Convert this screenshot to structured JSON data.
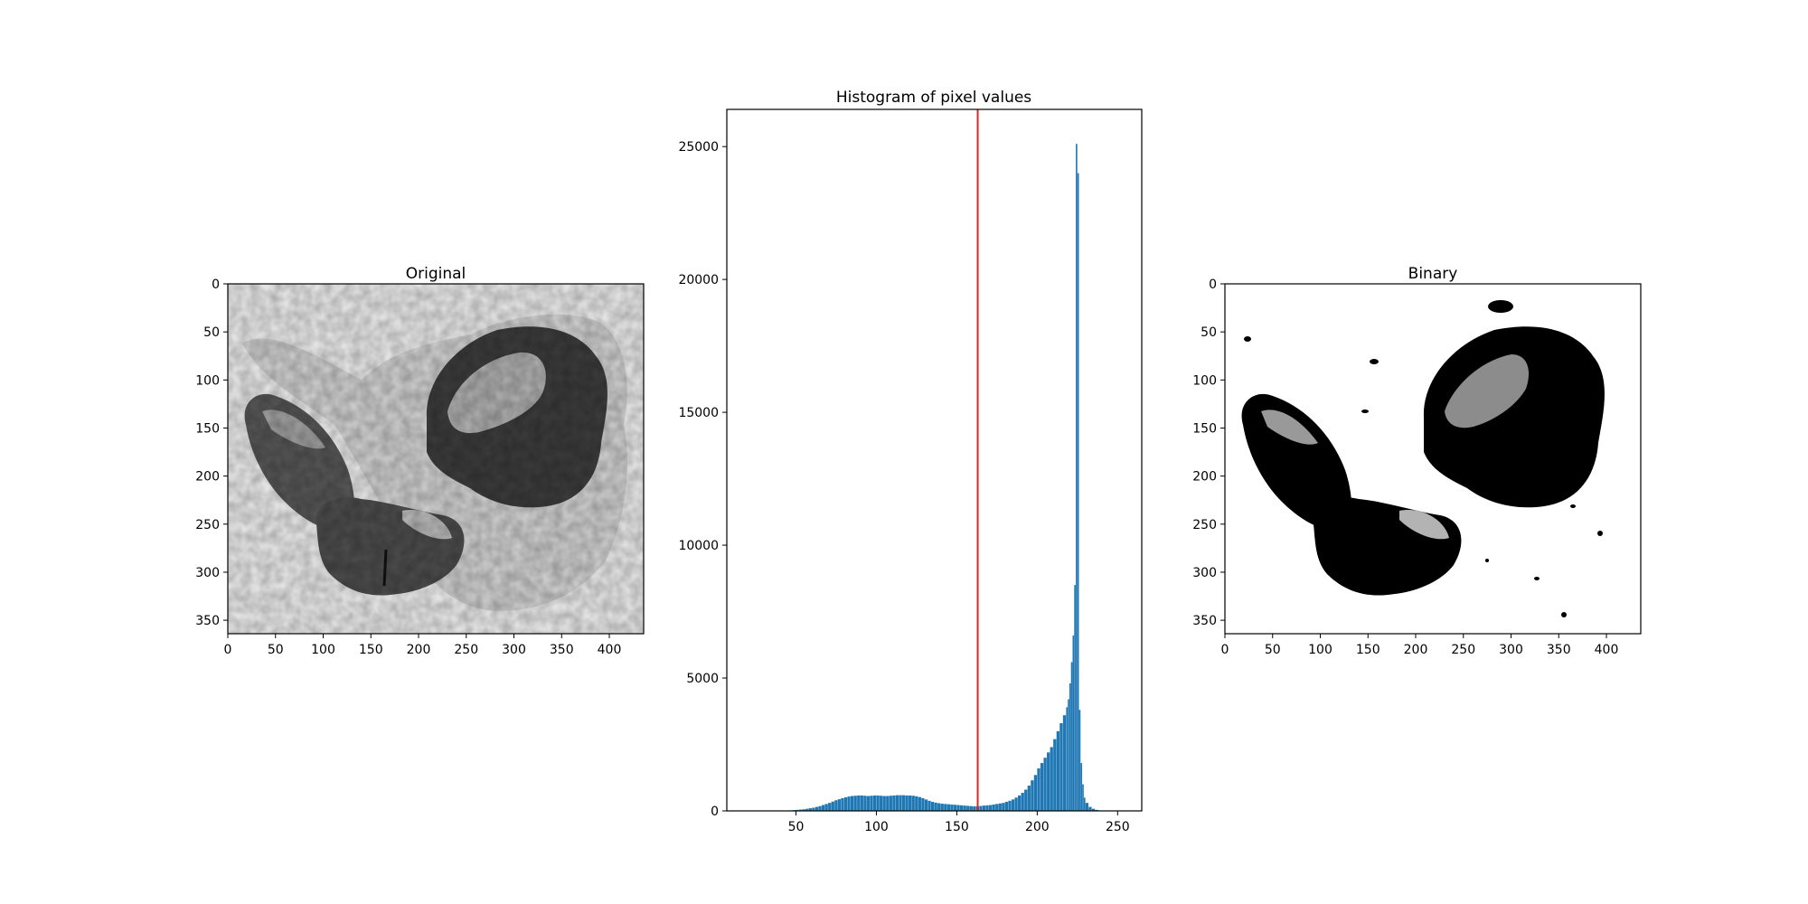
{
  "chart_data": [
    {
      "type": "image",
      "title": "Original",
      "xlim": [
        0,
        436
      ],
      "ylim": [
        364,
        0
      ],
      "xticks": [
        0,
        50,
        100,
        150,
        200,
        250,
        300,
        350,
        400
      ],
      "yticks": [
        0,
        50,
        100,
        150,
        200,
        250,
        300,
        350
      ],
      "colormap": "gray",
      "background": "#e2e2e2"
    },
    {
      "type": "bar",
      "title": "Histogram of pixel values",
      "xlim": [
        7,
        265
      ],
      "ylim": [
        0,
        26400
      ],
      "xticks": [
        50,
        100,
        150,
        200,
        250
      ],
      "yticks": [
        0,
        5000,
        10000,
        15000,
        20000,
        25000
      ],
      "bar_color": "#1f77b4",
      "threshold": 163,
      "threshold_color": "#d62728",
      "bins": {
        "x": [
          40,
          42,
          44,
          46,
          48,
          50,
          52,
          54,
          56,
          58,
          60,
          62,
          64,
          66,
          68,
          70,
          72,
          74,
          76,
          78,
          80,
          82,
          84,
          86,
          88,
          90,
          92,
          94,
          96,
          98,
          100,
          102,
          104,
          106,
          108,
          110,
          112,
          114,
          116,
          118,
          120,
          122,
          124,
          126,
          128,
          130,
          132,
          134,
          136,
          138,
          140,
          142,
          144,
          146,
          148,
          150,
          152,
          154,
          156,
          158,
          160,
          162,
          164,
          166,
          168,
          170,
          172,
          174,
          176,
          178,
          180,
          182,
          184,
          186,
          188,
          190,
          192,
          194,
          196,
          198,
          200,
          202,
          204,
          206,
          208,
          210,
          212,
          214,
          216,
          218,
          219,
          220,
          221,
          222,
          223,
          224,
          225,
          226,
          227,
          228,
          229,
          230,
          232,
          234,
          236,
          238,
          240,
          242,
          244,
          246,
          248,
          250
        ],
        "counts": [
          5,
          10,
          15,
          20,
          30,
          40,
          50,
          60,
          80,
          100,
          120,
          150,
          180,
          220,
          260,
          300,
          350,
          400,
          440,
          480,
          510,
          540,
          560,
          570,
          580,
          580,
          570,
          560,
          570,
          580,
          580,
          570,
          560,
          560,
          570,
          580,
          590,
          590,
          590,
          580,
          580,
          570,
          550,
          520,
          480,
          430,
          380,
          340,
          310,
          290,
          270,
          260,
          250,
          240,
          230,
          220,
          210,
          200,
          190,
          180,
          170,
          175,
          185,
          200,
          210,
          220,
          240,
          260,
          280,
          300,
          340,
          380,
          430,
          500,
          580,
          680,
          800,
          950,
          1150,
          1350,
          1600,
          1800,
          2000,
          2200,
          2400,
          2700,
          3000,
          3300,
          3600,
          3900,
          4200,
          4800,
          5600,
          6600,
          8500,
          25100,
          24000,
          3800,
          1800,
          1000,
          500,
          300,
          150,
          80,
          40,
          20,
          10,
          5,
          3,
          2,
          1,
          1
        ]
      }
    },
    {
      "type": "image",
      "title": "Binary",
      "xlim": [
        0,
        436
      ],
      "ylim": [
        364,
        0
      ],
      "xticks": [
        0,
        50,
        100,
        150,
        200,
        250,
        300,
        350,
        400
      ],
      "yticks": [
        0,
        50,
        100,
        150,
        200,
        250,
        300,
        350
      ],
      "colormap": "binary"
    }
  ]
}
